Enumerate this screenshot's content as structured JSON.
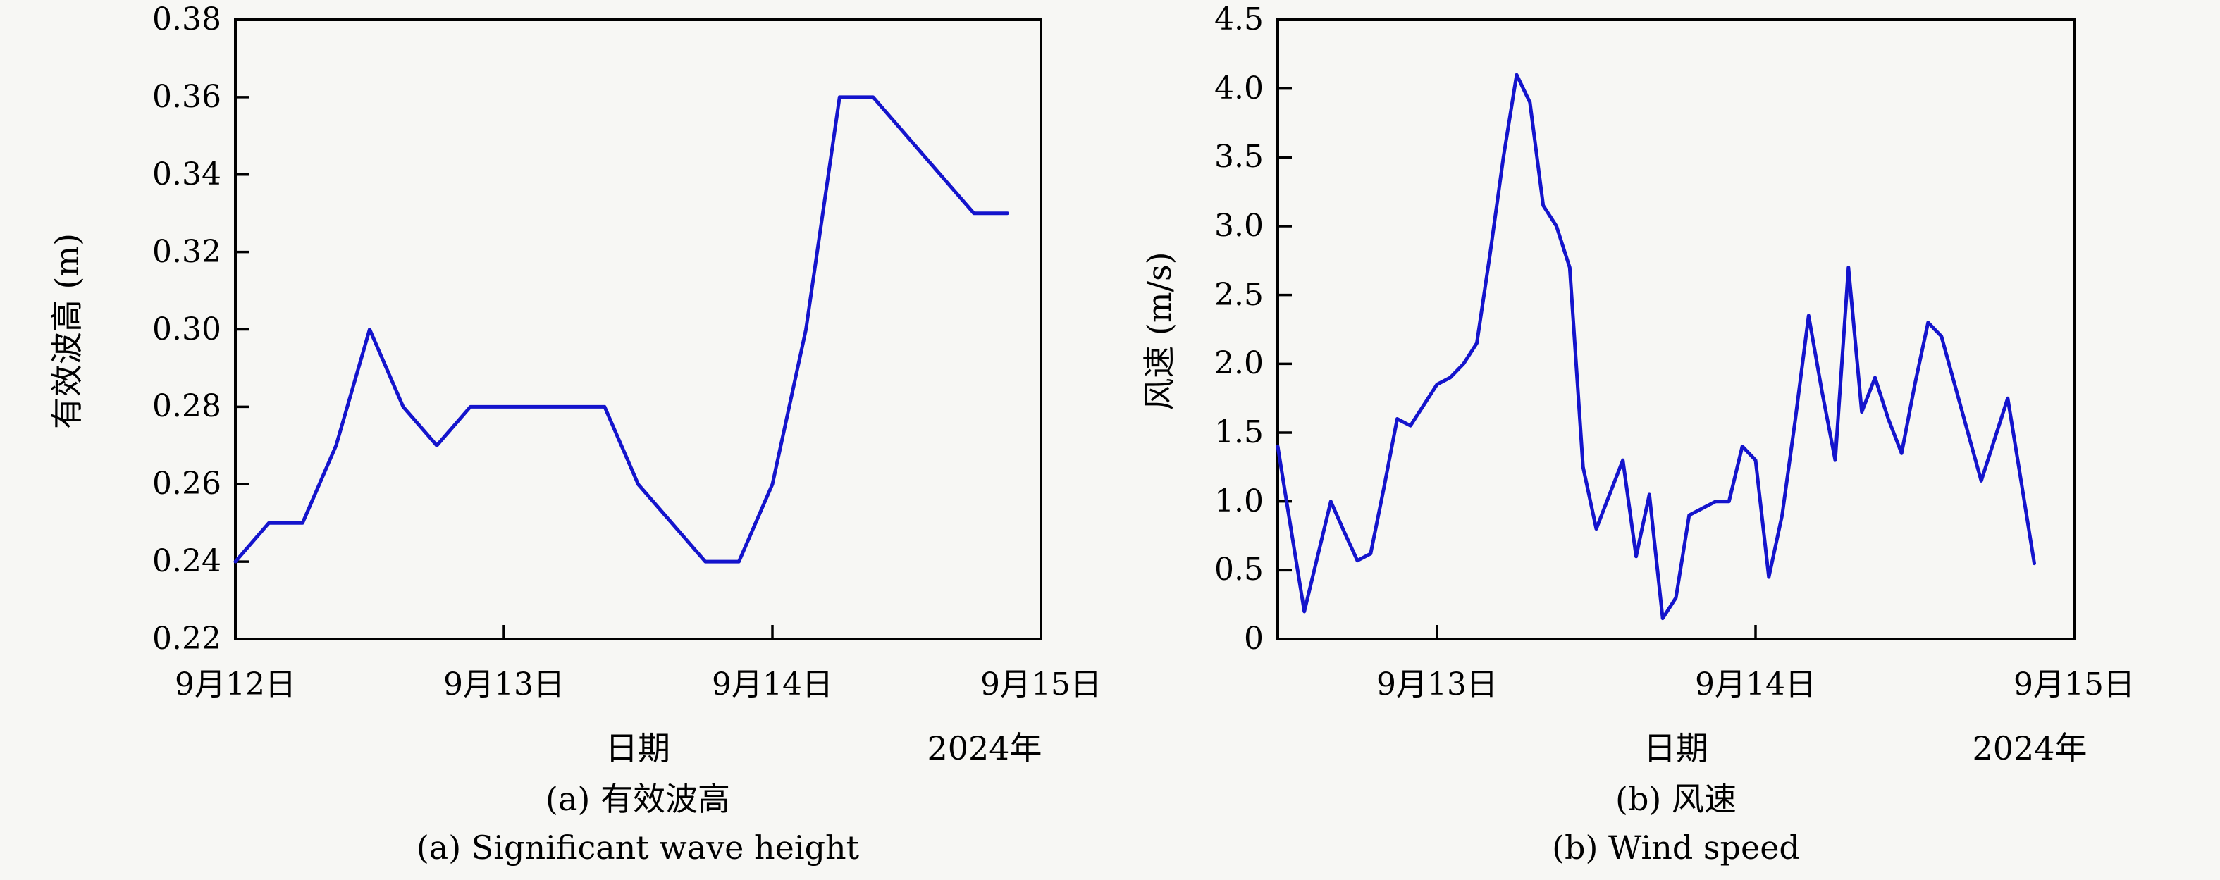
{
  "figure": {
    "background_color": "#f7f7f4",
    "axis_color": "#000000",
    "line_color": "#1414cc"
  },
  "chart_data": [
    {
      "type": "line",
      "panel": "a",
      "title": "",
      "ylabel": "有效波高 (m)",
      "xlabel": "日期",
      "year_label": "2024年",
      "caption_zh": "(a) 有效波高",
      "caption_en": "(a) Significant wave height",
      "ylim": [
        0.22,
        0.38
      ],
      "grid": false,
      "legend_position": "none",
      "yticks": [
        {
          "label": "0.38",
          "value": 0.38
        },
        {
          "label": "0.36",
          "value": 0.36
        },
        {
          "label": "0.34",
          "value": 0.34
        },
        {
          "label": "0.32",
          "value": 0.32
        },
        {
          "label": "0.30",
          "value": 0.3
        },
        {
          "label": "0.28",
          "value": 0.28
        },
        {
          "label": "0.26",
          "value": 0.26
        },
        {
          "label": "0.24",
          "value": 0.24
        },
        {
          "label": "0.22",
          "value": 0.22
        }
      ],
      "xlim_hours": [
        0,
        72
      ],
      "xticks": [
        {
          "label": "9月12日",
          "hour": 0
        },
        {
          "label": "9月13日",
          "hour": 24
        },
        {
          "label": "9月14日",
          "hour": 48
        },
        {
          "label": "9月15日",
          "hour": 72
        }
      ],
      "series": [
        {
          "name": "有效波高",
          "start_hour": 0,
          "interval_hours": 3,
          "values": [
            0.24,
            0.25,
            0.25,
            0.27,
            0.3,
            0.28,
            0.27,
            0.28,
            0.28,
            0.28,
            0.28,
            0.28,
            0.26,
            0.25,
            0.24,
            0.24,
            0.26,
            0.3,
            0.36,
            0.36,
            0.35,
            0.34,
            0.33,
            0.33
          ]
        }
      ]
    },
    {
      "type": "line",
      "panel": "b",
      "title": "",
      "ylabel": "风速 (m/s)",
      "xlabel": "日期",
      "year_label": "2024年",
      "caption_zh": "(b) 风速",
      "caption_en": "(b) Wind speed",
      "ylim": [
        0,
        4.5
      ],
      "grid": false,
      "legend_position": "none",
      "yticks": [
        {
          "label": "4.5",
          "value": 4.5
        },
        {
          "label": "4.0",
          "value": 4.0
        },
        {
          "label": "3.5",
          "value": 3.5
        },
        {
          "label": "3.0",
          "value": 3.0
        },
        {
          "label": "2.5",
          "value": 2.5
        },
        {
          "label": "2.0",
          "value": 2.0
        },
        {
          "label": "1.5",
          "value": 1.5
        },
        {
          "label": "1.0",
          "value": 1.0
        },
        {
          "label": "0.5",
          "value": 0.5
        },
        {
          "label": "0",
          "value": 0
        }
      ],
      "xlim_hours": [
        0,
        60
      ],
      "xticks": [
        {
          "label": "9月13日",
          "hour": 12
        },
        {
          "label": "9月14日",
          "hour": 36
        },
        {
          "label": "9月15日",
          "hour": 60
        }
      ],
      "series": [
        {
          "name": "风速",
          "start_hour": 0,
          "interval_hours": 1,
          "values": [
            1.4,
            0.8,
            0.2,
            0.6,
            1.0,
            0.78,
            0.57,
            0.62,
            1.1,
            1.6,
            1.55,
            1.7,
            1.85,
            1.9,
            2.0,
            2.15,
            2.8,
            3.5,
            4.1,
            3.9,
            3.15,
            3.0,
            2.7,
            1.25,
            0.8,
            1.05,
            1.3,
            0.6,
            1.05,
            0.15,
            0.3,
            0.9,
            0.95,
            1.0,
            1.0,
            1.4,
            1.3,
            0.45,
            0.9,
            1.6,
            2.35,
            1.8,
            1.3,
            2.7,
            1.65,
            1.9,
            1.6,
            1.35,
            1.85,
            2.3,
            2.2,
            1.85,
            1.5,
            1.15,
            1.45,
            1.75,
            1.15,
            0.55
          ]
        }
      ]
    }
  ]
}
